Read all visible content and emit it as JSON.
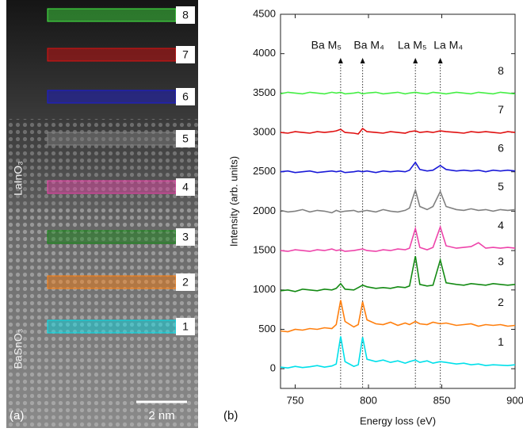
{
  "image": {
    "panel_label": "(a)",
    "scale_bar": "2 nm",
    "layers": [
      "LaInO₃",
      "BaSnO₃"
    ]
  },
  "chart_data": {
    "type": "line",
    "panel_label": "(b)",
    "x_label": "Energy loss (eV)",
    "y_label": "Intensity (arb. units)",
    "xlim": [
      740,
      900
    ],
    "xticks": [
      750,
      800,
      850,
      900
    ],
    "ylim": [
      -250,
      4500
    ],
    "yticks": [
      0,
      500,
      1000,
      1500,
      2000,
      2500,
      3000,
      3500,
      4000,
      4500
    ],
    "annotations": [
      {
        "text": "Ba M₅",
        "x": 781
      },
      {
        "text": "Ba M₄",
        "x": 796
      },
      {
        "text": "La M₅",
        "x": 832
      },
      {
        "text": "La M₄",
        "x": 849
      }
    ],
    "x": [
      740,
      745,
      750,
      755,
      760,
      765,
      770,
      775,
      778,
      781,
      784,
      790,
      793,
      796,
      799,
      805,
      810,
      815,
      820,
      825,
      828,
      832,
      835,
      840,
      844,
      849,
      853,
      860,
      865,
      870,
      875,
      880,
      885,
      890,
      895,
      900
    ],
    "series": [
      {
        "name": "1",
        "color": "#00e0ea",
        "values": [
          20,
          10,
          30,
          15,
          25,
          40,
          20,
          35,
          60,
          410,
          90,
          30,
          50,
          400,
          120,
          90,
          110,
          80,
          100,
          70,
          90,
          110,
          80,
          100,
          70,
          90,
          80,
          60,
          70,
          50,
          60,
          40,
          50,
          45,
          40,
          50
        ]
      },
      {
        "name": "2",
        "color": "#ff7f0e",
        "values": [
          480,
          470,
          500,
          490,
          510,
          500,
          520,
          510,
          560,
          870,
          600,
          530,
          560,
          850,
          620,
          570,
          560,
          590,
          550,
          580,
          560,
          600,
          570,
          560,
          590,
          570,
          580,
          550,
          560,
          570,
          540,
          560,
          550,
          560,
          540,
          550
        ]
      },
      {
        "name": "3",
        "color": "#138a13",
        "values": [
          990,
          1000,
          980,
          1010,
          1000,
          990,
          1010,
          1000,
          1020,
          1080,
          1010,
          1000,
          1030,
          1060,
          1040,
          1020,
          1030,
          1020,
          1040,
          1030,
          1050,
          1430,
          1070,
          1050,
          1060,
          1380,
          1090,
          1070,
          1060,
          1080,
          1070,
          1060,
          1080,
          1070,
          1060,
          1070
        ]
      },
      {
        "name": "4",
        "color": "#ee44aa",
        "values": [
          1500,
          1490,
          1510,
          1500,
          1490,
          1510,
          1500,
          1520,
          1500,
          1510,
          1490,
          1500,
          1510,
          1520,
          1500,
          1490,
          1510,
          1500,
          1520,
          1510,
          1530,
          1780,
          1540,
          1510,
          1540,
          1800,
          1560,
          1530,
          1540,
          1550,
          1600,
          1530,
          1540,
          1530,
          1540,
          1530
        ]
      },
      {
        "name": "5",
        "color": "#808080",
        "values": [
          2010,
          1990,
          2000,
          2020,
          1990,
          2010,
          2000,
          1980,
          2010,
          1990,
          2000,
          2010,
          1990,
          2000,
          2010,
          1990,
          2020,
          2000,
          1990,
          2010,
          2040,
          2270,
          2060,
          2020,
          2060,
          2250,
          2060,
          2020,
          2010,
          2030,
          2010,
          2020,
          2000,
          2020,
          2010,
          2020
        ]
      },
      {
        "name": "6",
        "color": "#1a1ad8",
        "values": [
          2500,
          2510,
          2490,
          2500,
          2510,
          2490,
          2500,
          2510,
          2500,
          2510,
          2490,
          2500,
          2510,
          2500,
          2510,
          2490,
          2510,
          2500,
          2510,
          2500,
          2520,
          2620,
          2530,
          2510,
          2520,
          2580,
          2530,
          2510,
          2520,
          2510,
          2520,
          2500,
          2520,
          2510,
          2520,
          2510
        ]
      },
      {
        "name": "7",
        "color": "#e01010",
        "values": [
          3000,
          2990,
          3010,
          3000,
          2990,
          3010,
          3000,
          3010,
          3020,
          3040,
          3000,
          2990,
          2980,
          3050,
          3010,
          3000,
          2990,
          3010,
          3000,
          2990,
          3010,
          3020,
          3000,
          3010,
          3000,
          3020,
          3010,
          3000,
          2990,
          3010,
          3000,
          3010,
          3000,
          2990,
          3010,
          3000
        ]
      },
      {
        "name": "8",
        "color": "#44ee44",
        "values": [
          3490,
          3510,
          3500,
          3490,
          3510,
          3500,
          3490,
          3510,
          3500,
          3510,
          3490,
          3500,
          3510,
          3490,
          3500,
          3510,
          3490,
          3500,
          3510,
          3490,
          3500,
          3510,
          3500,
          3490,
          3510,
          3500,
          3490,
          3510,
          3500,
          3490,
          3510,
          3500,
          3490,
          3510,
          3500,
          3490
        ]
      }
    ]
  }
}
